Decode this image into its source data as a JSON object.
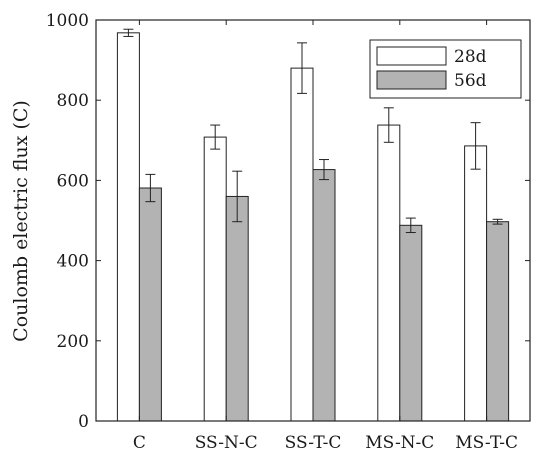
{
  "chart_data": {
    "type": "bar",
    "categories": [
      "C",
      "SS-N-C",
      "SS-T-C",
      "MS-N-C",
      "MS-T-C"
    ],
    "series": [
      {
        "name": "28d",
        "color": "#ffffff",
        "values": [
          968,
          708,
          880,
          738,
          686
        ],
        "errors": [
          9,
          30,
          63,
          43,
          58
        ]
      },
      {
        "name": "56d",
        "color": "#b3b3b3",
        "values": [
          581,
          560,
          627,
          488,
          497
        ],
        "errors": [
          34,
          63,
          25,
          18,
          6
        ]
      }
    ],
    "ylabel": "Coulomb electric flux (C)",
    "ylim": [
      0,
      1000
    ],
    "yticks": [
      "0",
      "200",
      "400",
      "600",
      "800",
      "1000"
    ],
    "ytick_values": [
      0,
      200,
      400,
      600,
      800,
      1000
    ],
    "grid": false,
    "legend_position": "top-right"
  }
}
